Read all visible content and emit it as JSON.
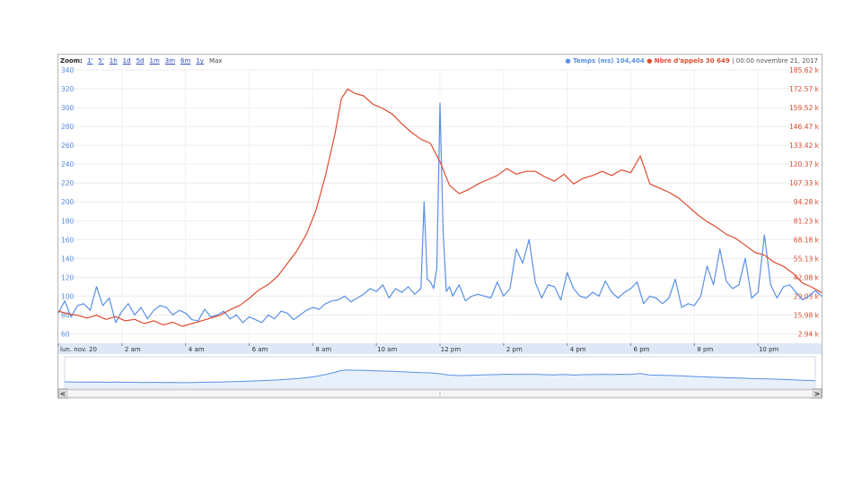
{
  "toolbar": {
    "zoom_label": "Zoom:",
    "zoom_options": [
      "1'",
      "5'",
      "1h",
      "1d",
      "5d",
      "1m",
      "3m",
      "6m",
      "1y",
      "Max"
    ],
    "active_zoom": "Max"
  },
  "legend": {
    "series1": "Temps (ms) 104,404",
    "series2": "Nbre d'appels 30 649",
    "date": "00:00 novembre 21, 2017",
    "series1_color": "#5a8fe6",
    "series2_color": "#dd4b2f"
  },
  "scrollbar": {
    "left_arrow": "<",
    "right_arrow": ">"
  },
  "chart_data": {
    "type": "line",
    "title": "",
    "x_unit": "hours since 00:00 Nov 20",
    "xlim": [
      0,
      24
    ],
    "x_ticks": [
      {
        "x": 0,
        "label": "lun. nov. 20"
      },
      {
        "x": 2,
        "label": "2 am"
      },
      {
        "x": 4,
        "label": "4 am"
      },
      {
        "x": 6,
        "label": "6 am"
      },
      {
        "x": 8,
        "label": "8 am"
      },
      {
        "x": 10,
        "label": "10 am"
      },
      {
        "x": 12,
        "label": "12 pm"
      },
      {
        "x": 14,
        "label": "2 pm"
      },
      {
        "x": 16,
        "label": "4 pm"
      },
      {
        "x": 18,
        "label": "6 pm"
      },
      {
        "x": 20,
        "label": "8 pm"
      },
      {
        "x": 22,
        "label": "10 pm"
      }
    ],
    "left_axis": {
      "ylim": [
        50,
        340
      ],
      "ticks": [
        60,
        80,
        100,
        120,
        140,
        160,
        180,
        200,
        220,
        240,
        260,
        280,
        300,
        320,
        340
      ]
    },
    "right_axis": {
      "ylim": [
        -10.11,
        185.62
      ],
      "ticks": [
        "2.94 k",
        "15.98 k",
        "29.03 k",
        "42.08 k",
        "55.13 k",
        "68.18 k",
        "81.23 k",
        "94.28 k",
        "107.33 k",
        "120.37 k",
        "133.42 k",
        "146.47 k",
        "159.52 k",
        "172.57 k",
        "185.62 k"
      ]
    },
    "series": [
      {
        "name": "Temps (ms)",
        "axis": "left",
        "color": "#5a8fe6",
        "x": [
          0,
          0.2,
          0.4,
          0.6,
          0.8,
          1.0,
          1.2,
          1.4,
          1.6,
          1.8,
          2.0,
          2.2,
          2.4,
          2.6,
          2.8,
          3.0,
          3.2,
          3.4,
          3.6,
          3.8,
          4.0,
          4.2,
          4.4,
          4.6,
          4.8,
          5.0,
          5.2,
          5.4,
          5.6,
          5.8,
          6.0,
          6.2,
          6.4,
          6.6,
          6.8,
          7.0,
          7.2,
          7.4,
          7.6,
          7.8,
          8.0,
          8.2,
          8.4,
          8.6,
          8.8,
          9.0,
          9.2,
          9.4,
          9.6,
          9.8,
          10.0,
          10.2,
          10.4,
          10.6,
          10.8,
          11.0,
          11.2,
          11.4,
          11.5,
          11.6,
          11.7,
          11.8,
          11.9,
          12.0,
          12.1,
          12.2,
          12.3,
          12.4,
          12.6,
          12.8,
          13.0,
          13.2,
          13.4,
          13.6,
          13.8,
          14.0,
          14.2,
          14.4,
          14.6,
          14.8,
          15.0,
          15.2,
          15.4,
          15.6,
          15.8,
          16.0,
          16.2,
          16.4,
          16.6,
          16.8,
          17.0,
          17.2,
          17.4,
          17.6,
          17.8,
          18.0,
          18.2,
          18.4,
          18.6,
          18.8,
          19.0,
          19.2,
          19.4,
          19.6,
          19.8,
          20.0,
          20.2,
          20.4,
          20.6,
          20.8,
          21.0,
          21.2,
          21.4,
          21.6,
          21.8,
          22.0,
          22.2,
          22.4,
          22.6,
          22.8,
          23.0,
          23.2,
          23.4,
          23.6,
          23.8,
          24.0
        ],
        "values": [
          82,
          95,
          78,
          90,
          92,
          85,
          110,
          90,
          98,
          72,
          84,
          92,
          80,
          88,
          76,
          85,
          90,
          88,
          80,
          85,
          82,
          75,
          74,
          86,
          78,
          80,
          84,
          76,
          80,
          72,
          78,
          75,
          72,
          80,
          76,
          84,
          82,
          75,
          80,
          85,
          88,
          86,
          92,
          95,
          96,
          100,
          94,
          98,
          102,
          108,
          105,
          112,
          98,
          108,
          104,
          110,
          102,
          108,
          200,
          118,
          115,
          108,
          130,
          305,
          168,
          105,
          110,
          100,
          112,
          95,
          100,
          102,
          100,
          98,
          115,
          100,
          108,
          150,
          135,
          160,
          114,
          98,
          112,
          110,
          96,
          125,
          108,
          100,
          98,
          104,
          100,
          116,
          104,
          98,
          104,
          108,
          115,
          92,
          100,
          98,
          92,
          98,
          118,
          88,
          92,
          90,
          100,
          132,
          112,
          150,
          116,
          108,
          112,
          140,
          98,
          104,
          165,
          112,
          98,
          110,
          112,
          104,
          96,
          100,
          106,
          100
        ]
      },
      {
        "name": "Nbre d'appels",
        "axis": "right",
        "color": "#dd4b2f",
        "x": [
          0,
          0.3,
          0.6,
          0.9,
          1.2,
          1.5,
          1.8,
          2.1,
          2.4,
          2.7,
          3.0,
          3.3,
          3.6,
          3.9,
          4.2,
          4.5,
          4.8,
          5.1,
          5.4,
          5.7,
          6.0,
          6.3,
          6.6,
          6.9,
          7.2,
          7.5,
          7.8,
          8.1,
          8.4,
          8.7,
          8.9,
          9.1,
          9.3,
          9.6,
          9.9,
          10.2,
          10.5,
          10.8,
          11.1,
          11.4,
          11.7,
          12.0,
          12.3,
          12.6,
          12.9,
          13.2,
          13.5,
          13.8,
          14.1,
          14.4,
          14.7,
          15.0,
          15.3,
          15.6,
          15.9,
          16.2,
          16.5,
          16.8,
          17.1,
          17.4,
          17.7,
          18.0,
          18.3,
          18.6,
          18.9,
          19.2,
          19.5,
          19.8,
          20.1,
          20.4,
          20.7,
          21.0,
          21.3,
          21.6,
          21.9,
          22.2,
          22.5,
          22.8,
          23.1,
          23.4,
          23.7,
          24.0
        ],
        "values": [
          13,
          11,
          10,
          8,
          10,
          7,
          9,
          6,
          7,
          4,
          6,
          3,
          5,
          2,
          4,
          6,
          8,
          10,
          14,
          17,
          22,
          28,
          32,
          38,
          47,
          56,
          68,
          85,
          110,
          140,
          165,
          172,
          169,
          167,
          161,
          158,
          154,
          147,
          141,
          136,
          133,
          120,
          103,
          97,
          100,
          104,
          107,
          110,
          115,
          111,
          113,
          113,
          109,
          106,
          111,
          104,
          108,
          110,
          113,
          110,
          114,
          112,
          124,
          104,
          101,
          98,
          94,
          88,
          82,
          77,
          73,
          68,
          65,
          60,
          55,
          53,
          48,
          45,
          40,
          33,
          30,
          26
        ]
      }
    ]
  }
}
